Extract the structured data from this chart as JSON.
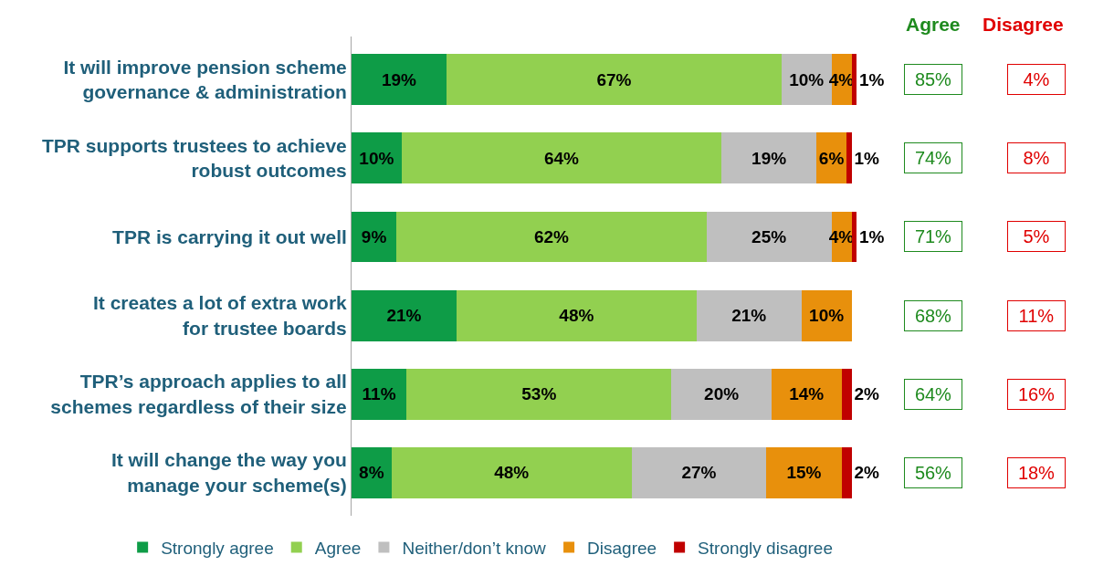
{
  "chart_data": {
    "type": "bar",
    "orientation": "horizontal",
    "stacked": true,
    "legend": "bottom",
    "categories": [
      "It will improve pension scheme governance & administration",
      "TPR supports trustees to achieve robust outcomes",
      "TPR is carrying it out well",
      "It creates a lot of extra work for trustee boards",
      "TPR’s approach applies to all schemes regardless of their size",
      "It will change the way you manage your scheme(s)"
    ],
    "series": [
      {
        "name": "Strongly agree",
        "color": "#0e9c47",
        "values": [
          19,
          10,
          9,
          21,
          11,
          8
        ],
        "value_labels": [
          "19%",
          "10%",
          "9%",
          "21%",
          "11%",
          "8%"
        ]
      },
      {
        "name": "Agree",
        "color": "#92d050",
        "values": [
          67,
          64,
          62,
          48,
          53,
          48
        ],
        "value_labels": [
          "67%",
          "64%",
          "62%",
          "48%",
          "53%",
          "48%"
        ]
      },
      {
        "name": "Neither/don’t know",
        "color": "#bfbfbf",
        "values": [
          10,
          19,
          25,
          21,
          20,
          27
        ],
        "value_labels": [
          "10%",
          "19%",
          "25%",
          "21%",
          "20%",
          "27%"
        ]
      },
      {
        "name": "Disagree",
        "color": "#e8900c",
        "values": [
          4,
          6,
          4,
          10,
          14,
          15
        ],
        "value_labels": [
          "4%",
          "6%",
          "4%",
          "10%",
          "14%",
          "15%"
        ]
      },
      {
        "name": "Strongly disagree",
        "color": "#c00000",
        "values": [
          1,
          1,
          1,
          null,
          2,
          2
        ],
        "value_labels": [
          "1%",
          "1%",
          "1%",
          null,
          "2%",
          "2%"
        ]
      }
    ],
    "annotations": [
      "Agree",
      "Disagree",
      "85%",
      "4%",
      "74%",
      "8%",
      "71%",
      "5%",
      "68%",
      "11%",
      "64%",
      "16%",
      "56%",
      "18%"
    ]
  }
}
